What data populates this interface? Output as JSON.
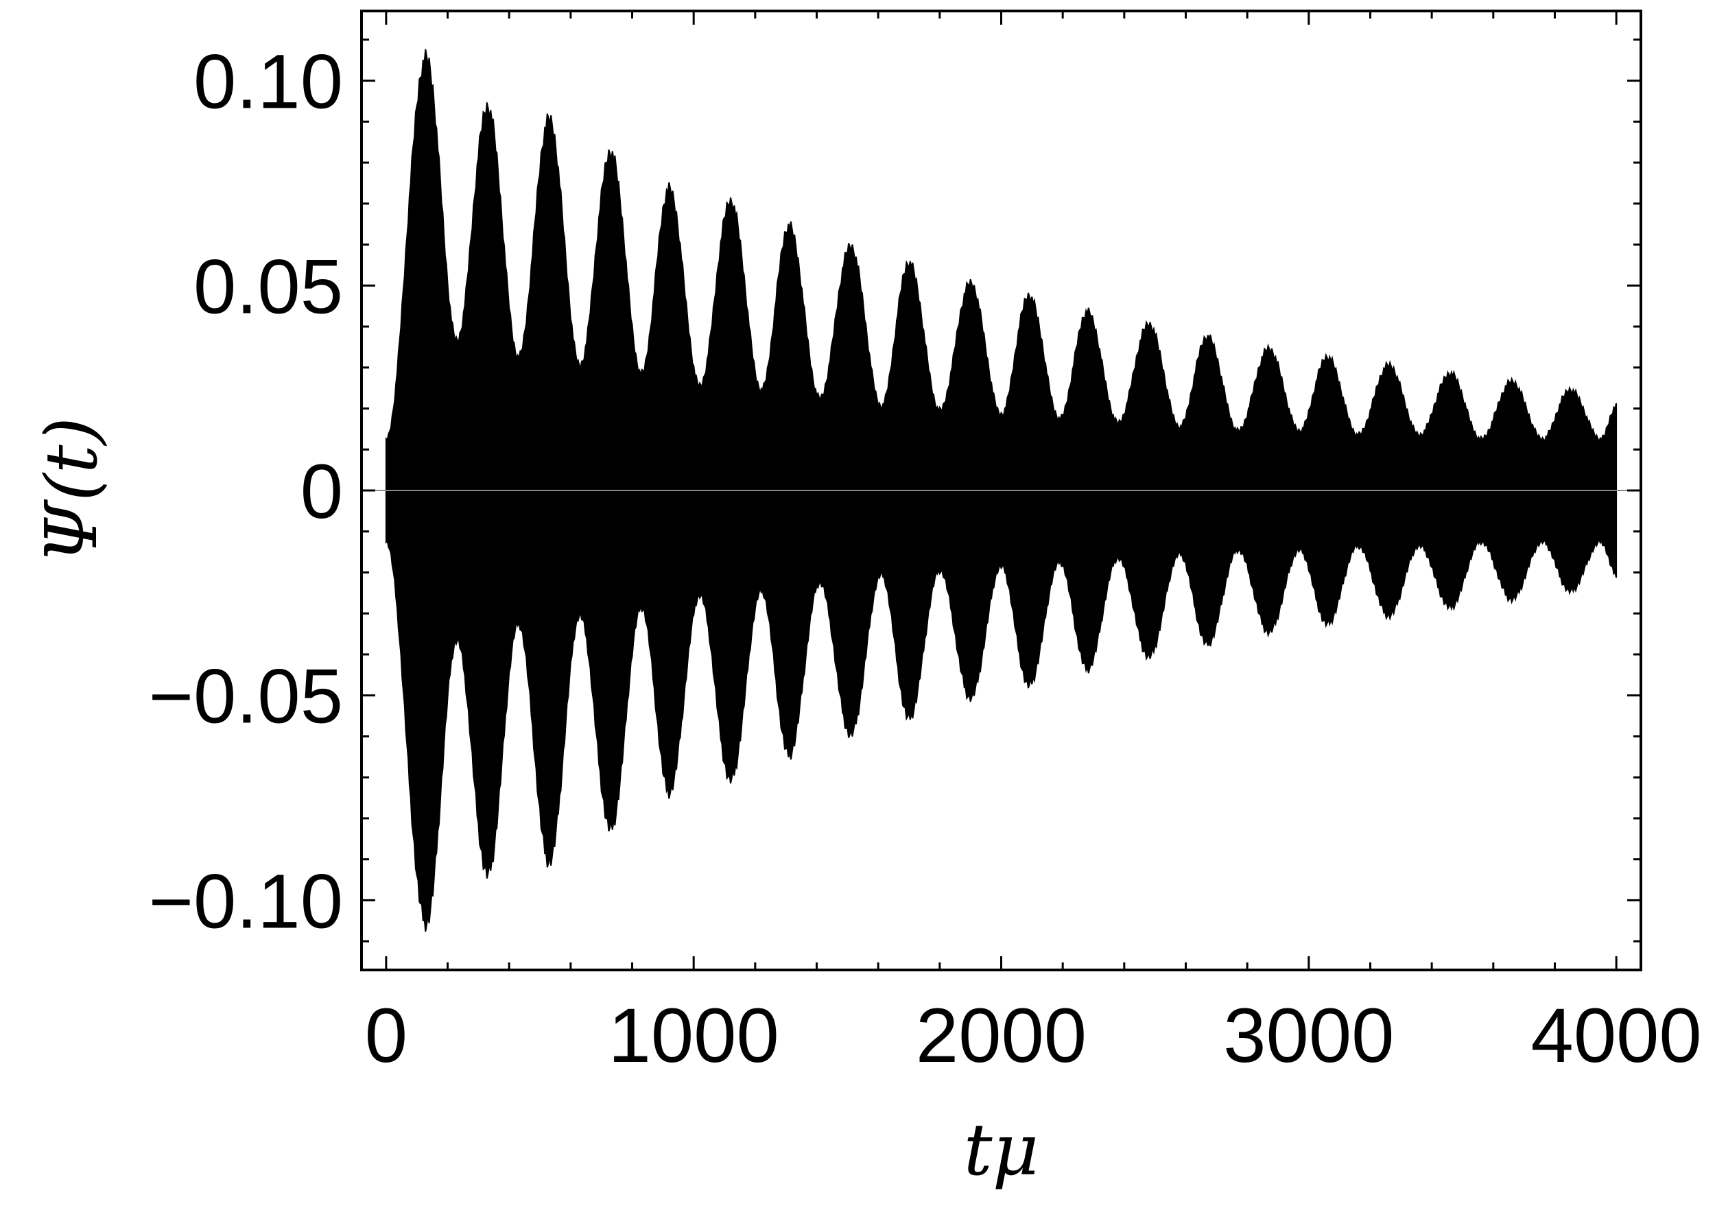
{
  "chart_data": {
    "type": "line",
    "title": "",
    "xlabel": "tμ",
    "ylabel": "Ψ(t)",
    "xlim": [
      -80,
      4080
    ],
    "ylim": [
      -0.117,
      0.117
    ],
    "xticks": [
      0,
      1000,
      2000,
      3000,
      4000
    ],
    "xtick_labels": [
      "0",
      "1000",
      "2000",
      "3000",
      "4000"
    ],
    "yticks": [
      -0.1,
      -0.05,
      0,
      0.05,
      0.1
    ],
    "ytick_labels": [
      "−0.10",
      "−0.05",
      "0",
      "0.05",
      "0.10"
    ],
    "grid": false,
    "legend": "none",
    "line_color": "#000000",
    "series": [
      {
        "style": "densely oscillating signal, drawn as upper/lower envelope",
        "envelope_peaks": {
          "t": [
            130,
            330,
            530,
            730,
            920,
            1120,
            1310,
            1510,
            1700,
            1900,
            2090,
            2280,
            2480,
            2670,
            2870,
            3060,
            3260,
            3460,
            3660,
            3850
          ],
          "amplitude": [
            0.105,
            0.093,
            0.09,
            0.082,
            0.073,
            0.07,
            0.064,
            0.059,
            0.055,
            0.05,
            0.047,
            0.043,
            0.04,
            0.037,
            0.034,
            0.032,
            0.03,
            0.028,
            0.026,
            0.024
          ]
        },
        "envelope_troughs": {
          "t": [
            230,
            430,
            630,
            830,
            1020,
            1220,
            1410,
            1610,
            1800,
            2000,
            2190,
            2380,
            2580,
            2770,
            2970,
            3160,
            3360,
            3560,
            3760,
            3950
          ],
          "amplitude": [
            0.036,
            0.032,
            0.03,
            0.028,
            0.025,
            0.024,
            0.022,
            0.02,
            0.019,
            0.018,
            0.017,
            0.016,
            0.015,
            0.014,
            0.014,
            0.013,
            0.013,
            0.012,
            0.012,
            0.012
          ]
        },
        "t_start": 0,
        "t_end": 4000
      }
    ]
  }
}
